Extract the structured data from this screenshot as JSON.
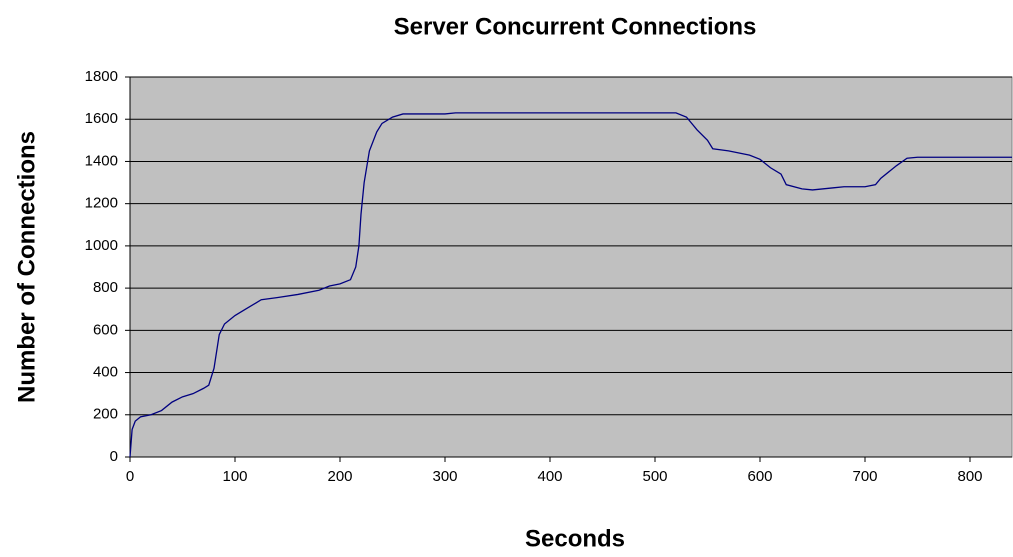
{
  "chart_data": {
    "type": "line",
    "title": "Server Concurrent Connections",
    "x_label": "Seconds",
    "y_label": "Number of Connections",
    "x": [
      0,
      2,
      5,
      10,
      20,
      30,
      40,
      50,
      60,
      70,
      75,
      80,
      85,
      90,
      100,
      110,
      120,
      125,
      140,
      160,
      180,
      190,
      200,
      210,
      215,
      218,
      220,
      223,
      228,
      235,
      240,
      250,
      260,
      300,
      310,
      400,
      520,
      530,
      540,
      550,
      555,
      570,
      590,
      600,
      610,
      620,
      625,
      640,
      650,
      670,
      680,
      700,
      710,
      715,
      730,
      740,
      750,
      840
    ],
    "values": [
      0,
      130,
      170,
      190,
      200,
      220,
      260,
      285,
      300,
      325,
      340,
      420,
      580,
      630,
      670,
      700,
      730,
      745,
      755,
      770,
      790,
      810,
      820,
      840,
      900,
      1000,
      1150,
      1300,
      1450,
      1540,
      1580,
      1610,
      1625,
      1625,
      1630,
      1630,
      1630,
      1610,
      1550,
      1500,
      1460,
      1450,
      1430,
      1410,
      1370,
      1340,
      1290,
      1270,
      1265,
      1275,
      1280,
      1280,
      1290,
      1320,
      1380,
      1415,
      1420,
      1420
    ],
    "color": "#000080",
    "xlim": [
      0,
      840
    ],
    "xticks": [
      0,
      100,
      200,
      300,
      400,
      500,
      600,
      700,
      800
    ],
    "ylim": [
      0,
      1800
    ],
    "yticks": [
      0,
      200,
      400,
      600,
      800,
      1000,
      1200,
      1400,
      1600,
      1800
    ],
    "grid": true
  }
}
